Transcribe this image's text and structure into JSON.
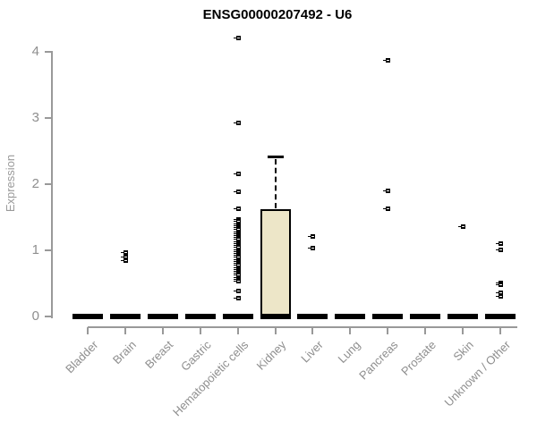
{
  "chart_data": {
    "type": "boxplot",
    "title": "ENSG00000207492 - U6",
    "ylabel": "Expression",
    "xlabel": "",
    "ylim": [
      0,
      4
    ],
    "yticks": [
      0,
      1,
      2,
      3,
      4
    ],
    "grid": false,
    "legend": false,
    "categories": [
      "Bladder",
      "Brain",
      "Breast",
      "Gastric",
      "Hematopoietic cells",
      "Kidney",
      "Liver",
      "Lung",
      "Pancreas",
      "Prostate",
      "Skin",
      "Unknown / Other"
    ],
    "boxes": [
      {
        "category": "Bladder",
        "low": 0,
        "q1": 0,
        "median": 0,
        "q3": 0,
        "high": 0,
        "outliers": []
      },
      {
        "category": "Brain",
        "low": 0,
        "q1": 0,
        "median": 0,
        "q3": 0,
        "high": 0,
        "outliers": [
          0.97,
          0.91,
          0.85
        ]
      },
      {
        "category": "Breast",
        "low": 0,
        "q1": 0,
        "median": 0,
        "q3": 0,
        "high": 0,
        "outliers": []
      },
      {
        "category": "Gastric",
        "low": 0,
        "q1": 0,
        "median": 0,
        "q3": 0,
        "high": 0,
        "outliers": []
      },
      {
        "category": "Hematopoietic cells",
        "low": 0,
        "q1": 0,
        "median": 0,
        "q3": 0,
        "high": 0,
        "outliers": [
          4.21,
          2.93,
          2.16,
          1.89,
          1.64,
          1.47,
          1.44,
          1.41,
          1.38,
          1.35,
          1.32,
          1.29,
          1.26,
          1.23,
          1.2,
          1.17,
          1.14,
          1.11,
          1.08,
          1.05,
          1.02,
          0.99,
          0.96,
          0.93,
          0.9,
          0.87,
          0.84,
          0.81,
          0.78,
          0.75,
          0.72,
          0.69,
          0.66,
          0.63,
          0.6,
          0.57,
          0.54,
          0.39,
          0.29
        ]
      },
      {
        "category": "Kidney",
        "low": 0,
        "q1": 0,
        "median": 0,
        "q3": 1.59,
        "high": 2.42,
        "outliers": []
      },
      {
        "category": "Liver",
        "low": 0,
        "q1": 0,
        "median": 0,
        "q3": 0,
        "high": 0,
        "outliers": [
          1.21,
          1.04
        ]
      },
      {
        "category": "Lung",
        "low": 0,
        "q1": 0,
        "median": 0,
        "q3": 0,
        "high": 0,
        "outliers": []
      },
      {
        "category": "Pancreas",
        "low": 0,
        "q1": 0,
        "median": 0,
        "q3": 0,
        "high": 0,
        "outliers": [
          3.88,
          1.91,
          1.64
        ]
      },
      {
        "category": "Prostate",
        "low": 0,
        "q1": 0,
        "median": 0,
        "q3": 0,
        "high": 0,
        "outliers": []
      },
      {
        "category": "Skin",
        "low": 0,
        "q1": 0,
        "median": 0,
        "q3": 0,
        "high": 0,
        "outliers": [
          1.37
        ]
      },
      {
        "category": "Unknown / Other",
        "low": 0,
        "q1": 0,
        "median": 0,
        "q3": 0,
        "high": 0,
        "outliers": [
          1.11,
          1.02,
          0.52,
          0.48,
          0.36,
          0.31
        ]
      }
    ],
    "colors": {
      "box_fill": "#EDE6C8",
      "box_border": "#000000",
      "axis": "#999999",
      "tick_text": "#8E8E8E",
      "title_text": "#000000"
    }
  }
}
